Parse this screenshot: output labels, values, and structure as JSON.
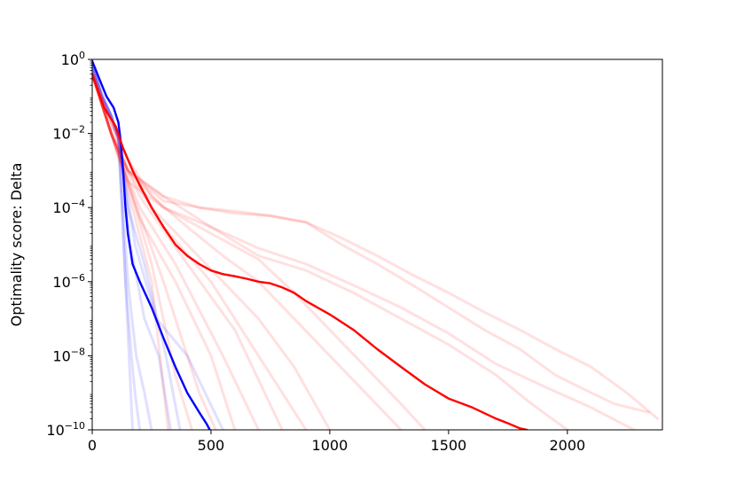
{
  "chart_data": {
    "type": "line",
    "title": "",
    "xlabel": "",
    "ylabel": "Optimality score: Delta",
    "xlim": [
      0,
      2400
    ],
    "ylim": [
      1e-10,
      1
    ],
    "yscale": "log",
    "grid": false,
    "legend": "none",
    "xticks": [
      {
        "value": 0,
        "label": "0"
      },
      {
        "value": 500,
        "label": "500"
      },
      {
        "value": 1000,
        "label": "1000"
      },
      {
        "value": 1500,
        "label": "1500"
      },
      {
        "value": 2000,
        "label": "2000"
      }
    ],
    "yticks": [
      {
        "value": 1,
        "base": "10",
        "exp": "0"
      },
      {
        "value": 0.01,
        "base": "10",
        "exp": "−2"
      },
      {
        "value": 0.0001,
        "base": "10",
        "exp": "−4"
      },
      {
        "value": 1e-06,
        "base": "10",
        "exp": "−6"
      },
      {
        "value": 1e-08,
        "base": "10",
        "exp": "−8"
      },
      {
        "value": 1e-10,
        "base": "10",
        "exp": "−10"
      }
    ],
    "colors": {
      "blue_mean": "#0000ff",
      "blue_faint": "#0000ff",
      "red_mean": "#ff0000",
      "red_faint": "#ff0000"
    },
    "series": [
      {
        "group": "blue",
        "style": "faint",
        "x": [
          0,
          40,
          80,
          110,
          125,
          140,
          165,
          180,
          200
        ],
        "y": [
          0.7,
          0.12,
          0.03,
          0.008,
          0.0001,
          1e-06,
          1e-08,
          1e-09,
          1e-10
        ]
      },
      {
        "group": "blue",
        "style": "faint",
        "x": [
          0,
          40,
          80,
          110,
          125,
          140,
          155,
          170
        ],
        "y": [
          0.8,
          0.1,
          0.03,
          0.006,
          0.0001,
          1e-06,
          1e-08,
          1e-10
        ]
      },
      {
        "group": "blue",
        "style": "faint",
        "x": [
          0,
          40,
          80,
          110,
          130,
          150,
          185,
          220,
          250
        ],
        "y": [
          0.6,
          0.1,
          0.03,
          0.008,
          0.0001,
          1e-06,
          1e-08,
          1e-09,
          1e-10
        ]
      },
      {
        "group": "blue",
        "style": "faint",
        "x": [
          0,
          40,
          80,
          110,
          135,
          160,
          220,
          280,
          330
        ],
        "y": [
          0.7,
          0.1,
          0.03,
          0.008,
          0.0005,
          1e-05,
          1e-07,
          1e-08,
          1e-10
        ]
      },
      {
        "group": "blue",
        "style": "faint",
        "x": [
          0,
          40,
          80,
          110,
          140,
          180,
          270,
          400,
          550
        ],
        "y": [
          0.7,
          0.12,
          0.03,
          0.008,
          0.0005,
          1e-05,
          1e-07,
          1e-08,
          1e-10
        ]
      },
      {
        "group": "blue",
        "style": "faint",
        "x": [
          0,
          40,
          80,
          110,
          150,
          220,
          310,
          370
        ],
        "y": [
          0.7,
          0.1,
          0.03,
          0.008,
          0.0001,
          3e-06,
          1e-08,
          1e-10
        ]
      },
      {
        "group": "blue",
        "style": "mean",
        "x": [
          0,
          30,
          60,
          90,
          110,
          120,
          130,
          140,
          150,
          170,
          200,
          250,
          300,
          350,
          400,
          450,
          480,
          495
        ],
        "y": [
          0.9,
          0.3,
          0.1,
          0.05,
          0.02,
          0.006,
          0.001,
          0.0001,
          2e-05,
          3e-06,
          1e-06,
          2e-07,
          3e-08,
          5e-09,
          1e-09,
          3e-10,
          1.5e-10,
          1e-10
        ]
      },
      {
        "group": "red",
        "style": "faint",
        "x": [
          0,
          80,
          150,
          250,
          400,
          550,
          700,
          850,
          1000,
          1150,
          1300
        ],
        "y": [
          0.5,
          0.02,
          0.002,
          0.0002,
          3e-05,
          5e-06,
          1e-06,
          1e-07,
          1e-08,
          1e-09,
          1e-10
        ]
      },
      {
        "group": "red",
        "style": "faint",
        "x": [
          0,
          80,
          150,
          250,
          400,
          550,
          700,
          850,
          1000
        ],
        "y": [
          0.4,
          0.02,
          0.002,
          0.0001,
          1e-05,
          1e-06,
          1e-07,
          5e-09,
          1e-10
        ]
      },
      {
        "group": "red",
        "style": "faint",
        "x": [
          0,
          80,
          150,
          300,
          500,
          700,
          900
        ],
        "y": [
          0.4,
          0.02,
          0.001,
          3e-05,
          1e-06,
          1e-08,
          1e-10
        ]
      },
      {
        "group": "red",
        "style": "faint",
        "x": [
          0,
          80,
          200,
          400,
          600,
          800
        ],
        "y": [
          0.4,
          0.01,
          0.0002,
          3e-06,
          5e-08,
          1e-10
        ]
      },
      {
        "group": "red",
        "style": "faint",
        "x": [
          0,
          80,
          200,
          350,
          550,
          700
        ],
        "y": [
          0.4,
          0.01,
          0.0001,
          3e-06,
          1e-08,
          1e-10
        ]
      },
      {
        "group": "red",
        "style": "faint",
        "x": [
          0,
          80,
          200,
          350,
          500,
          600
        ],
        "y": [
          0.4,
          0.01,
          5e-05,
          1e-06,
          1e-08,
          1e-10
        ]
      },
      {
        "group": "red",
        "style": "faint",
        "x": [
          0,
          80,
          150,
          300,
          450,
          520
        ],
        "y": [
          0.4,
          0.01,
          0.0005,
          1e-06,
          1e-09,
          1e-10
        ]
      },
      {
        "group": "red",
        "style": "faint",
        "x": [
          0,
          80,
          150,
          250,
          350,
          420
        ],
        "y": [
          0.4,
          0.01,
          0.0005,
          3e-06,
          3e-09,
          1e-10
        ]
      },
      {
        "group": "red",
        "style": "faint",
        "x": [
          0,
          80,
          150,
          250,
          320
        ],
        "y": [
          0.4,
          0.01,
          0.0003,
          1e-06,
          1e-10
        ]
      },
      {
        "group": "red",
        "style": "faint",
        "x": [
          0,
          80,
          150,
          300,
          500,
          700,
          850,
          1000,
          1150,
          1300,
          1400
        ],
        "y": [
          0.4,
          0.01,
          0.0005,
          0.0001,
          2e-05,
          4e-06,
          5e-07,
          5e-08,
          5e-09,
          5e-10,
          1e-10
        ]
      },
      {
        "group": "red",
        "style": "faint",
        "x": [
          0,
          80,
          150,
          300,
          500,
          700,
          900,
          1100,
          1300,
          1500,
          1700,
          1850,
          2000
        ],
        "y": [
          0.4,
          0.01,
          0.001,
          0.0001,
          3e-05,
          5e-06,
          2e-06,
          5e-07,
          1e-07,
          2e-08,
          3e-09,
          5e-10,
          1e-10
        ]
      },
      {
        "group": "red",
        "style": "faint",
        "x": [
          0,
          80,
          150,
          300,
          450,
          600,
          750,
          900,
          1050,
          1200,
          1350,
          1500,
          1650,
          1800,
          1950,
          2100,
          2250,
          2380
        ],
        "y": [
          0.4,
          0.01,
          0.001,
          0.00015,
          0.0001,
          8e-05,
          6e-05,
          4e-05,
          1.5e-05,
          5e-06,
          1.5e-06,
          5e-07,
          1.5e-07,
          5e-08,
          1.5e-08,
          5e-09,
          1e-09,
          2e-10
        ]
      },
      {
        "group": "red",
        "style": "faint",
        "x": [
          0,
          80,
          150,
          300,
          500,
          700,
          900,
          1100,
          1300,
          1500,
          1700,
          1900,
          2100,
          2280
        ],
        "y": [
          0.4,
          0.01,
          0.001,
          0.0002,
          3e-05,
          8e-06,
          3e-06,
          8e-07,
          2e-07,
          4e-08,
          6e-09,
          1.5e-09,
          4e-10,
          1e-10
        ]
      },
      {
        "group": "red",
        "style": "faint",
        "x": [
          0,
          80,
          150,
          300,
          450,
          600,
          750,
          900,
          1050,
          1200,
          1350,
          1500,
          1650,
          1800,
          1950,
          2100,
          2200,
          2340
        ],
        "y": [
          0.4,
          0.01,
          0.001,
          0.0002,
          0.0001,
          7e-05,
          6e-05,
          4e-05,
          1e-05,
          3e-06,
          8e-07,
          2e-07,
          5e-08,
          1.5e-08,
          3e-09,
          1e-09,
          5e-10,
          3e-10
        ]
      },
      {
        "group": "red",
        "style": "mean",
        "x": [
          0,
          50,
          100,
          130,
          150,
          170,
          200,
          250,
          300,
          350,
          400,
          450,
          500,
          550,
          600,
          650,
          700,
          750,
          800,
          850,
          900,
          1000,
          1100,
          1200,
          1300,
          1400,
          1500,
          1600,
          1700,
          1750,
          1800,
          1830
        ],
        "y": [
          0.4,
          0.05,
          0.015,
          0.004,
          0.002,
          0.001,
          0.0004,
          0.0001,
          3e-05,
          1e-05,
          5e-06,
          3e-06,
          2e-06,
          1.6e-06,
          1.4e-06,
          1.2e-06,
          1e-06,
          9e-07,
          7e-07,
          5e-07,
          3e-07,
          1.3e-07,
          5e-08,
          1.5e-08,
          5e-09,
          1.7e-09,
          7e-10,
          4e-10,
          2e-10,
          1.5e-10,
          1.1e-10,
          1e-10
        ]
      }
    ]
  }
}
